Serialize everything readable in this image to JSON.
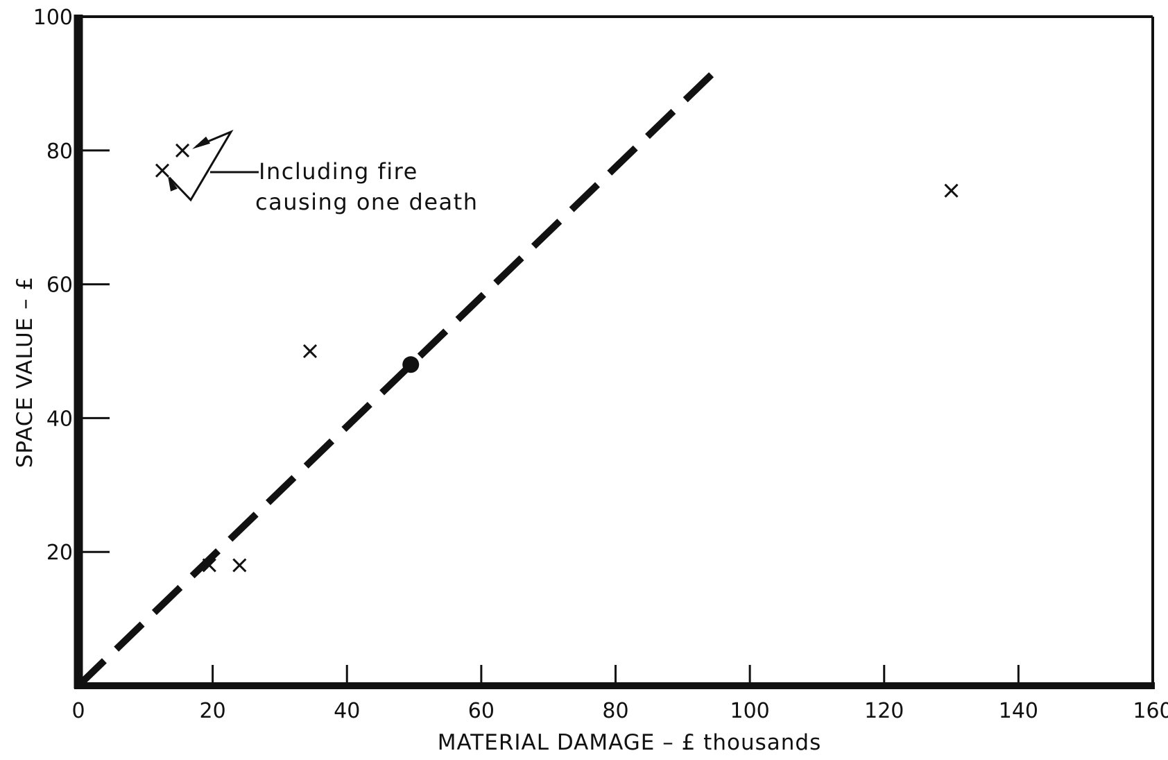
{
  "chart_data": {
    "type": "scatter",
    "title": "",
    "xlabel": "MATERIAL DAMAGE – £ thousands",
    "ylabel": "SPACE VALUE – £",
    "xlim": [
      0,
      160
    ],
    "ylim": [
      0,
      100
    ],
    "x_ticks": [
      "0",
      "20",
      "40",
      "60",
      "80",
      "100",
      "120",
      "140",
      "160"
    ],
    "y_ticks": [
      "20",
      "40",
      "60",
      "80",
      "100"
    ],
    "grid": false,
    "legend": "none",
    "series": [
      {
        "marker": "x",
        "points": [
          {
            "x": 12.5,
            "y": 77
          },
          {
            "x": 15.5,
            "y": 80
          },
          {
            "x": 19.5,
            "y": 18
          },
          {
            "x": 24,
            "y": 18
          },
          {
            "x": 34.5,
            "y": 50
          },
          {
            "x": 130,
            "y": 74
          }
        ]
      },
      {
        "marker": "dot",
        "points": [
          {
            "x": 49.5,
            "y": 48
          }
        ]
      }
    ],
    "trend_line": {
      "style": "dashed",
      "points": [
        {
          "x": 0,
          "y": 0
        },
        {
          "x": 96,
          "y": 93
        }
      ]
    },
    "annotation": {
      "lines": [
        "Including fire",
        "causing one death"
      ]
    },
    "colors": {
      "ink": "#111111",
      "background": "#ffffff"
    }
  }
}
